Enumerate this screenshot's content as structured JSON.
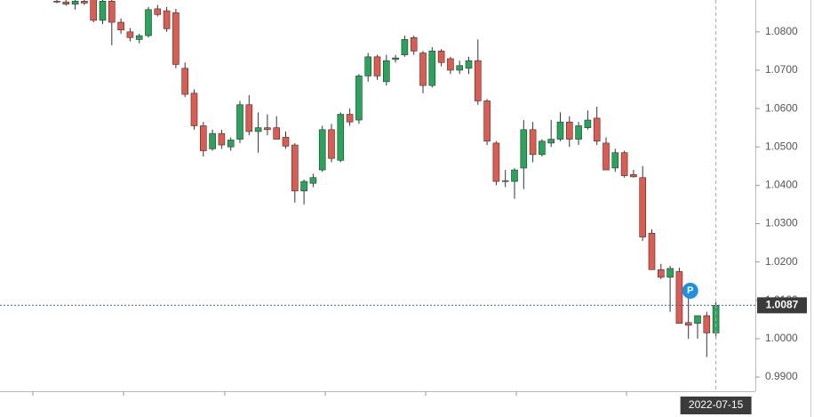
{
  "chart_data": {
    "type": "candlestick",
    "categories": [
      null,
      null,
      null,
      null,
      null,
      null,
      null,
      null,
      null,
      null,
      null,
      null,
      null,
      null,
      null,
      null,
      null,
      null,
      null,
      null,
      null,
      null,
      null,
      null,
      null,
      null,
      null,
      null,
      null,
      null,
      null,
      null,
      null,
      null,
      null,
      null,
      null,
      null,
      null,
      null,
      null,
      null,
      null,
      null,
      null,
      null,
      null,
      null,
      null,
      null,
      null,
      null,
      null,
      null,
      null,
      null,
      null,
      null,
      null,
      null,
      null,
      null,
      null,
      null,
      null,
      null,
      null,
      null,
      null,
      null,
      null,
      null,
      "2022-07-15"
    ],
    "open": [
      1.088,
      1.0878,
      1.0872,
      1.088,
      1.0885,
      1.083,
      1.088,
      1.0825,
      1.08,
      1.078,
      1.079,
      1.086,
      1.0855,
      1.085,
      1.0705,
      1.064,
      1.0555,
      1.0495,
      1.0535,
      1.05,
      1.052,
      1.061,
      1.054,
      1.055,
      1.055,
      1.0525,
      1.0505,
      1.0385,
      1.0405,
      1.044,
      1.0545,
      1.0465,
      1.0585,
      1.057,
      1.0685,
      1.0735,
      1.067,
      1.0728,
      1.074,
      1.0785,
      1.0745,
      1.066,
      1.075,
      1.073,
      1.07,
      1.0705,
      1.0725,
      1.062,
      1.051,
      1.041,
      1.041,
      1.0445,
      1.0545,
      1.048,
      1.051,
      1.052,
      1.0565,
      1.052,
      1.055,
      1.0575,
      1.051,
      1.0445,
      1.0485,
      1.0428,
      1.042,
      1.0275,
      1.018,
      1.016,
      1.0175,
      1.0042,
      1.004,
      1.006,
      1.0015
    ],
    "high": [
      1.0885,
      1.0883,
      1.0885,
      1.089,
      1.089,
      1.0885,
      1.089,
      1.0835,
      1.081,
      1.0795,
      1.0865,
      1.087,
      1.0865,
      1.086,
      1.072,
      1.065,
      1.0565,
      1.0545,
      1.0545,
      1.0525,
      1.062,
      1.0635,
      1.059,
      1.0585,
      1.058,
      1.054,
      1.051,
      1.0415,
      1.043,
      1.0555,
      1.056,
      1.059,
      1.06,
      1.069,
      1.0745,
      1.074,
      1.074,
      1.074,
      1.079,
      1.079,
      1.075,
      1.076,
      1.0755,
      1.0735,
      1.0725,
      1.0735,
      1.078,
      1.0625,
      1.0515,
      1.044,
      1.0445,
      1.057,
      1.0565,
      1.052,
      1.057,
      1.059,
      1.058,
      1.0565,
      1.0595,
      1.0605,
      1.0525,
      1.0495,
      1.049,
      1.044,
      1.045,
      1.0285,
      1.0195,
      1.019,
      1.0185,
      1.012,
      1.006,
      1.007,
      1.0095
    ],
    "low": [
      1.0875,
      1.0868,
      1.0858,
      1.087,
      1.0825,
      1.082,
      1.0765,
      1.0795,
      1.0775,
      1.077,
      1.0785,
      1.084,
      1.08,
      1.0705,
      1.063,
      1.0545,
      1.0475,
      1.049,
      1.0495,
      1.049,
      1.051,
      1.053,
      1.0485,
      1.053,
      1.052,
      1.0495,
      1.0355,
      1.035,
      1.0395,
      1.0435,
      1.046,
      1.046,
      1.0555,
      1.056,
      1.067,
      1.0675,
      1.066,
      1.072,
      1.0735,
      1.074,
      1.064,
      1.0655,
      1.071,
      1.069,
      1.069,
      1.069,
      1.061,
      1.0505,
      1.04,
      1.0395,
      1.0365,
      1.039,
      1.046,
      1.0475,
      1.05,
      1.0515,
      1.05,
      1.0505,
      1.0545,
      1.0505,
      1.044,
      1.0435,
      1.042,
      1.042,
      1.0255,
      1.018,
      1.0155,
      1.007,
      1.004,
      1.0,
      1.0,
      0.9952,
      1.0
    ],
    "close": [
      1.0878,
      1.0872,
      1.088,
      1.0875,
      1.083,
      1.088,
      1.0825,
      1.0805,
      1.0785,
      1.079,
      1.0858,
      1.0845,
      1.0808,
      1.0715,
      1.0637,
      1.0555,
      1.049,
      1.0535,
      1.0505,
      1.0518,
      1.061,
      1.054,
      1.055,
      1.0545,
      1.052,
      1.0502,
      1.0385,
      1.041,
      1.042,
      1.0545,
      1.047,
      1.0585,
      1.0565,
      1.0685,
      1.0735,
      1.0685,
      1.0725,
      1.0732,
      1.078,
      1.075,
      1.066,
      1.075,
      1.072,
      1.07,
      1.0712,
      1.0725,
      1.062,
      1.0515,
      1.041,
      1.0412,
      1.044,
      1.0545,
      1.048,
      1.0515,
      1.052,
      1.0565,
      1.052,
      1.0555,
      1.057,
      1.0515,
      1.044,
      1.0485,
      1.0425,
      1.0422,
      1.0265,
      1.018,
      1.016,
      1.0183,
      1.004,
      1.0035,
      1.006,
      1.0015,
      1.0087
    ],
    "up_color": "#26a65b",
    "down_color": "#e05a50",
    "marker": "P",
    "ylim": [
      0.9863,
      1.0883
    ],
    "yticks": [
      {
        "value": 1.08,
        "label": "1.0800"
      },
      {
        "value": 1.07,
        "label": "1.0700"
      },
      {
        "value": 1.06,
        "label": "1.0600"
      },
      {
        "value": 1.05,
        "label": "1.0500"
      },
      {
        "value": 1.04,
        "label": "1.0400"
      },
      {
        "value": 1.03,
        "label": "1.0300"
      },
      {
        "value": 1.02,
        "label": "1.0200"
      },
      {
        "value": 1.01,
        "label": "1.0100"
      },
      {
        "value": 1.0,
        "label": "1.0000"
      },
      {
        "value": 0.99,
        "label": "0.9900"
      }
    ],
    "grid": false
  }
}
